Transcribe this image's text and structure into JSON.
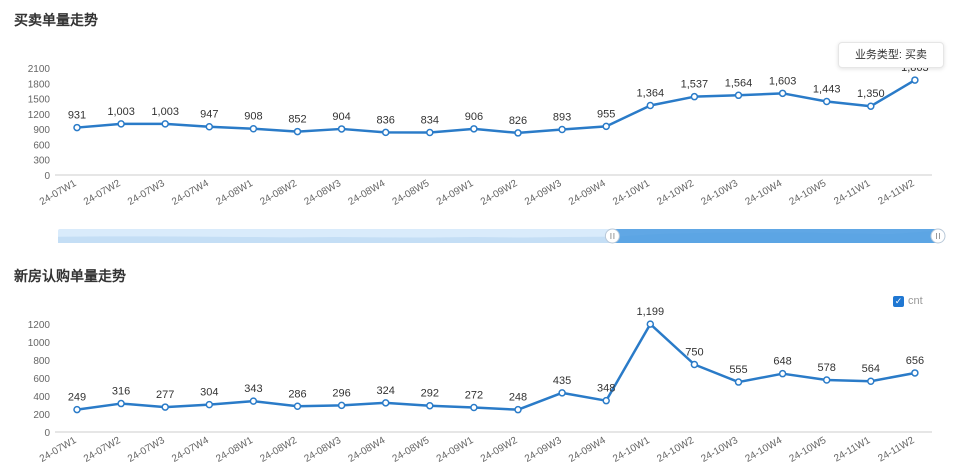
{
  "sections": {
    "top_title": "买卖单量走势",
    "bottom_title": "新房认购单量走势"
  },
  "tooltip": {
    "text": "业务类型: 买卖"
  },
  "legend": {
    "check": "✓",
    "label": "cnt"
  },
  "colors": {
    "line": "#2a7bc8",
    "zoom_fill": "#d9ebfb",
    "zoom_selected": "#4a9be0"
  },
  "chart_data": [
    {
      "type": "line",
      "title": "买卖单量走势",
      "categories": [
        "24-07W1",
        "24-07W2",
        "24-07W3",
        "24-07W4",
        "24-08W1",
        "24-08W2",
        "24-08W3",
        "24-08W4",
        "24-08W5",
        "24-09W1",
        "24-09W2",
        "24-09W3",
        "24-09W4",
        "24-10W1",
        "24-10W2",
        "24-10W3",
        "24-10W4",
        "24-10W5",
        "24-11W1",
        "24-11W2"
      ],
      "values": [
        931,
        1003,
        1003,
        947,
        908,
        852,
        904,
        836,
        834,
        906,
        826,
        893,
        955,
        1364,
        1537,
        1564,
        1603,
        1443,
        1350,
        1863
      ],
      "labels": [
        "931",
        "1,003",
        "1,003",
        "947",
        "908",
        "852",
        "904",
        "836",
        "834",
        "906",
        "826",
        "893",
        "955",
        "1,364",
        "1,537",
        "1,564",
        "1,603",
        "1,443",
        "1,350",
        "1,863"
      ],
      "yticks": [
        "0",
        "300",
        "600",
        "900",
        "1200",
        "1500",
        "1800",
        "2100"
      ],
      "ylim": [
        0,
        2100
      ],
      "grid": false,
      "zoom_slider": {
        "start": 0.63,
        "end": 1.0
      }
    },
    {
      "type": "line",
      "title": "新房认购单量走势",
      "categories": [
        "24-07W1",
        "24-07W2",
        "24-07W3",
        "24-07W4",
        "24-08W1",
        "24-08W2",
        "24-08W3",
        "24-08W4",
        "24-08W5",
        "24-09W1",
        "24-09W2",
        "24-09W3",
        "24-09W4",
        "24-10W1",
        "24-10W2",
        "24-10W3",
        "24-10W4",
        "24-10W5",
        "24-11W1",
        "24-11W2"
      ],
      "values": [
        249,
        316,
        277,
        304,
        343,
        286,
        296,
        324,
        292,
        272,
        248,
        435,
        348,
        1199,
        750,
        555,
        648,
        578,
        564,
        656
      ],
      "labels": [
        "249",
        "316",
        "277",
        "304",
        "343",
        "286",
        "296",
        "324",
        "292",
        "272",
        "248",
        "435",
        "348",
        "1,199",
        "750",
        "555",
        "648",
        "578",
        "564",
        "656"
      ],
      "yticks": [
        "0",
        "200",
        "400",
        "600",
        "800",
        "1000",
        "1200"
      ],
      "ylim": [
        0,
        1300
      ],
      "grid": false,
      "legend": "cnt",
      "legend_position": "top-right"
    }
  ]
}
